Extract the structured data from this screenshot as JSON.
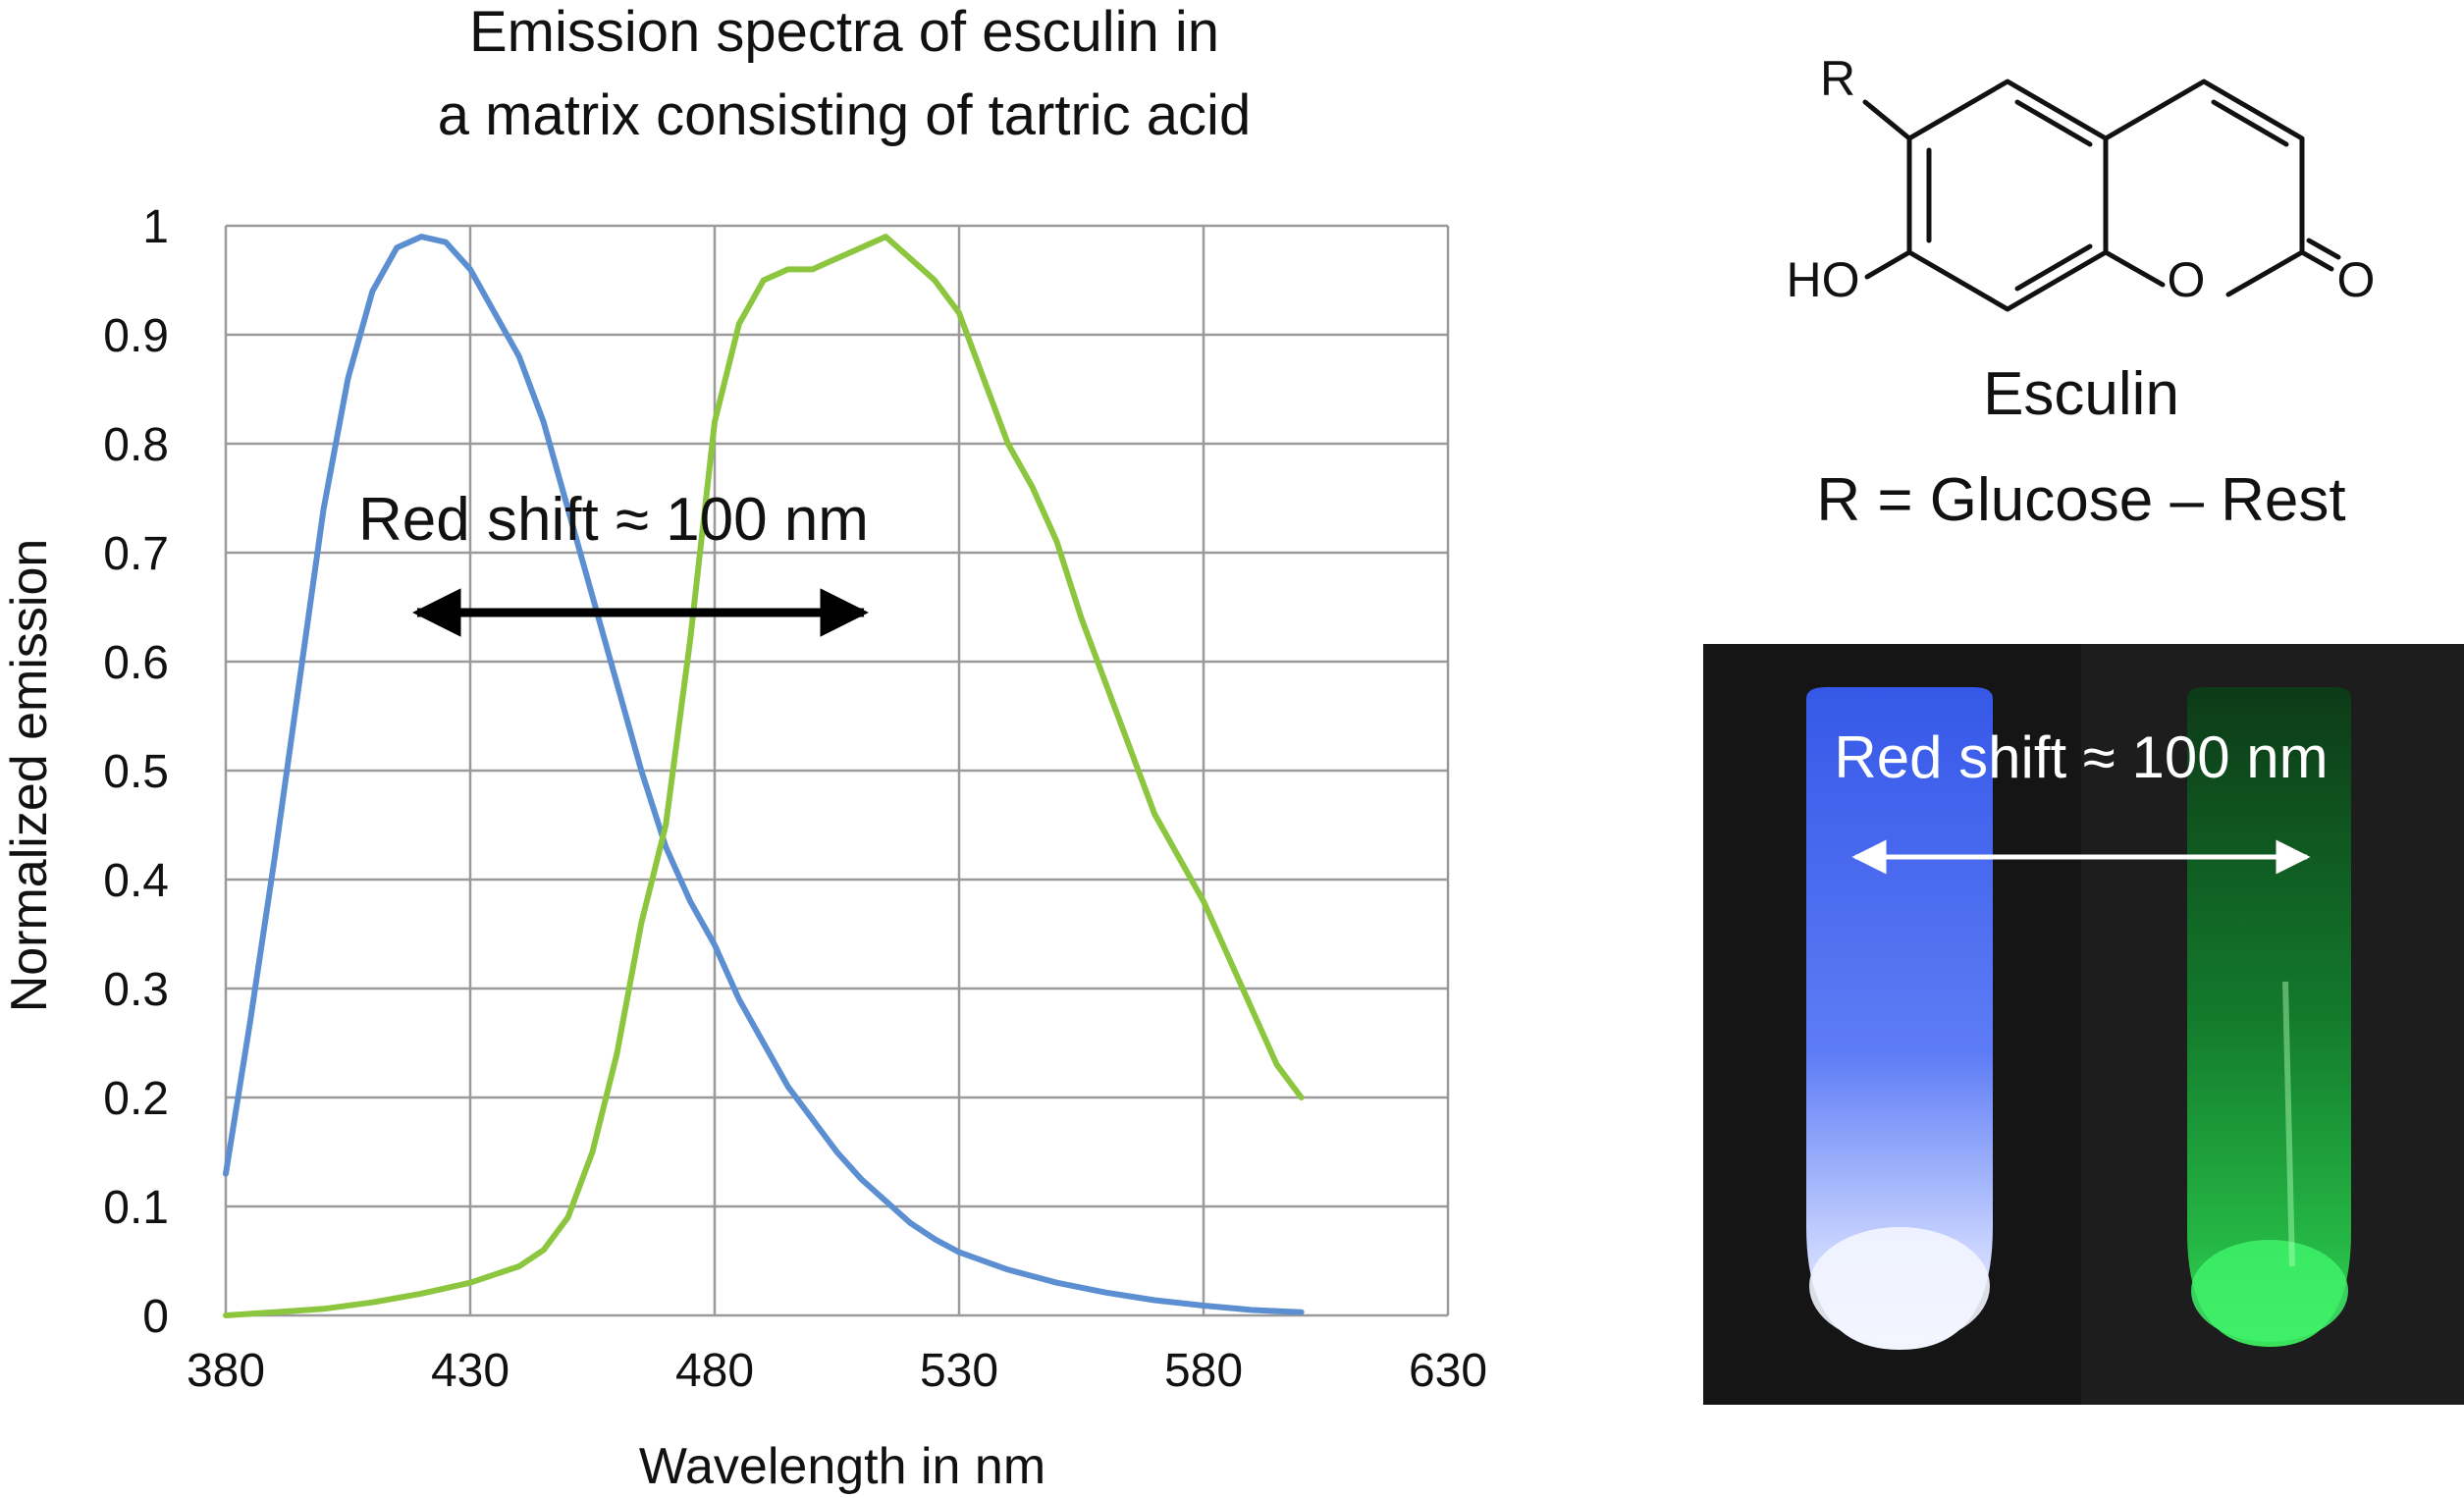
{
  "chart_data": {
    "type": "line",
    "title": "Emission spectra of esculin in",
    "subtitle": "a matrix consisting of tartric acid",
    "xlabel": "Wavelength in nm",
    "ylabel": "Normalized emission",
    "xlim": [
      380,
      630
    ],
    "ylim": [
      0,
      1
    ],
    "xticks": [
      "380",
      "430",
      "480",
      "530",
      "580",
      "630"
    ],
    "yticks": [
      "0",
      "0.1",
      "0.2",
      "0.3",
      "0.4",
      "0.5",
      "0.6",
      "0.7",
      "0.8",
      "0.9",
      "1"
    ],
    "grid": true,
    "annotation": "Red shift ≈ 100 nm",
    "series": [
      {
        "color": "#5b8fd2",
        "x": [
          380,
          385,
          390,
          395,
          400,
          405,
          410,
          415,
          420,
          425,
          430,
          435,
          440,
          445,
          450,
          455,
          460,
          465,
          470,
          475,
          480,
          485,
          490,
          495,
          500,
          505,
          510,
          515,
          520,
          525,
          530,
          540,
          550,
          560,
          570,
          580,
          590,
          600
        ],
        "y": [
          0.13,
          0.27,
          0.42,
          0.58,
          0.74,
          0.86,
          0.94,
          0.98,
          0.99,
          0.985,
          0.96,
          0.92,
          0.88,
          0.82,
          0.74,
          0.66,
          0.58,
          0.5,
          0.43,
          0.38,
          0.34,
          0.29,
          0.25,
          0.21,
          0.18,
          0.15,
          0.125,
          0.105,
          0.085,
          0.07,
          0.058,
          0.042,
          0.03,
          0.021,
          0.014,
          0.009,
          0.005,
          0.003
        ]
      },
      {
        "color": "#8cc63f",
        "x": [
          380,
          390,
          400,
          410,
          420,
          430,
          440,
          445,
          450,
          455,
          460,
          465,
          470,
          475,
          480,
          485,
          490,
          495,
          500,
          505,
          510,
          515,
          520,
          525,
          530,
          535,
          540,
          545,
          550,
          555,
          560,
          565,
          570,
          575,
          580,
          585,
          590,
          595,
          600
        ],
        "y": [
          0,
          0.003,
          0.006,
          0.012,
          0.02,
          0.03,
          0.045,
          0.06,
          0.09,
          0.15,
          0.24,
          0.36,
          0.45,
          0.62,
          0.82,
          0.91,
          0.95,
          0.96,
          0.96,
          0.97,
          0.98,
          0.99,
          0.97,
          0.95,
          0.92,
          0.86,
          0.8,
          0.76,
          0.71,
          0.64,
          0.58,
          0.52,
          0.46,
          0.42,
          0.38,
          0.33,
          0.28,
          0.23,
          0.2
        ]
      }
    ]
  },
  "structure": {
    "substituent_label": "R",
    "hydroxyl_label": "HO",
    "ring_oxygen_label": "O",
    "carbonyl_oxygen_label": "O",
    "compound_name": "Esculin",
    "substituent_definition": "R = Glucose – Rest"
  },
  "photo": {
    "annotation": "Red shift ≈ 100 nm",
    "left_tube_color": "#6f90ff",
    "right_tube_color": "#2fd04a"
  }
}
